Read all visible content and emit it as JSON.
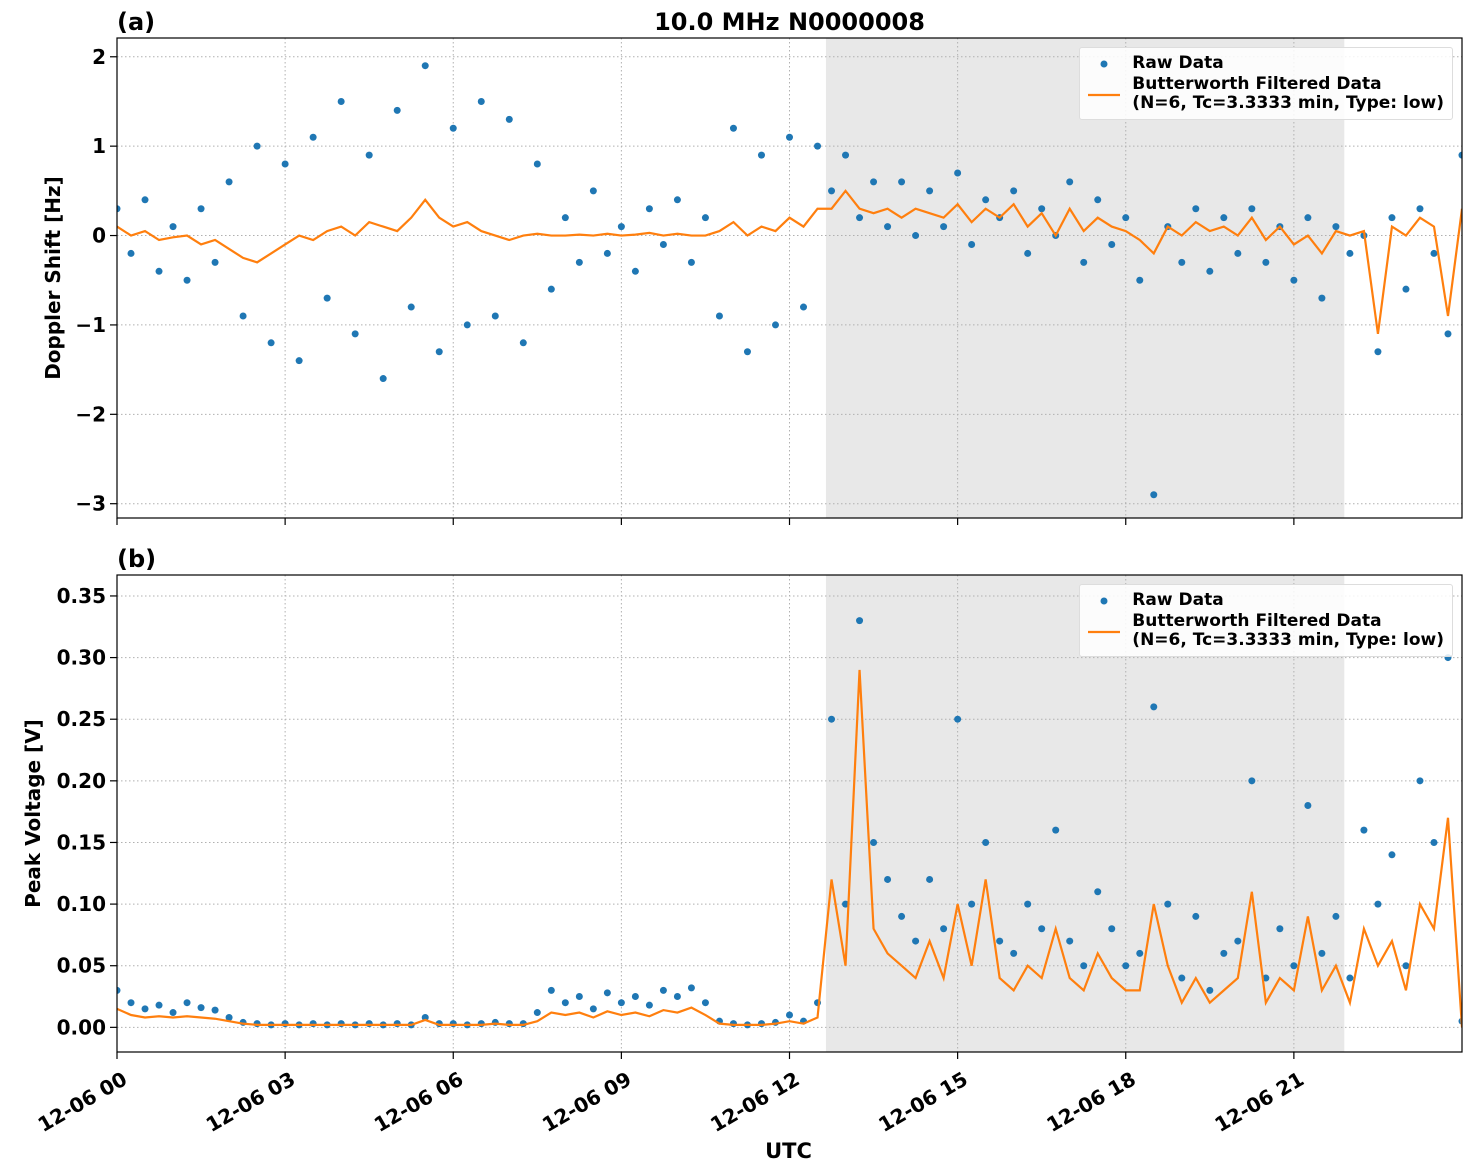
{
  "chart_data": [
    {
      "type": "line",
      "panel_label": "(a)",
      "title": "10.0 MHz N0000008",
      "ylabel": "Doppler Shift [Hz]",
      "x": [
        0,
        0.25,
        0.5,
        0.75,
        1,
        1.25,
        1.5,
        1.75,
        2,
        2.25,
        2.5,
        2.75,
        3,
        3.25,
        3.5,
        3.75,
        4,
        4.25,
        4.5,
        4.75,
        5,
        5.25,
        5.5,
        5.75,
        6,
        6.25,
        6.5,
        6.75,
        7,
        7.25,
        7.5,
        7.75,
        8,
        8.25,
        8.5,
        8.75,
        9,
        9.25,
        9.5,
        9.75,
        10,
        10.25,
        10.5,
        10.75,
        11,
        11.25,
        11.5,
        11.75,
        12,
        12.25,
        12.5,
        12.75,
        13,
        13.25,
        13.5,
        13.75,
        14,
        14.25,
        14.5,
        14.75,
        15,
        15.25,
        15.5,
        15.75,
        16,
        16.25,
        16.5,
        16.75,
        17,
        17.25,
        17.5,
        17.75,
        18,
        18.25,
        18.5,
        18.75,
        19,
        19.25,
        19.5,
        19.75,
        20,
        20.25,
        20.5,
        20.75,
        21,
        21.25,
        21.5,
        21.75,
        22,
        22.25,
        22.5,
        22.75,
        23,
        23.25,
        23.5,
        23.75,
        24
      ],
      "xlim": [
        0,
        24
      ],
      "xticks": [
        0,
        3,
        6,
        9,
        12,
        15,
        18,
        21
      ],
      "ylim": [
        -3.16,
        2.21
      ],
      "yticks": [
        {
          "value": -3,
          "label": "−3"
        },
        {
          "value": -2,
          "label": "−2"
        },
        {
          "value": -1,
          "label": "−1"
        },
        0,
        1,
        2
      ],
      "grid": true,
      "legend": "upper right",
      "shaded_span": [
        12.65,
        21.9
      ],
      "shade_color": "#e8e8e8",
      "series": [
        {
          "name": "Raw Data",
          "color": "#1f77b4",
          "mode": "markers",
          "values": [
            0.3,
            -0.2,
            0.4,
            -0.4,
            0.1,
            -0.5,
            0.3,
            -0.3,
            0.6,
            -0.9,
            1.0,
            -1.2,
            0.8,
            -1.4,
            1.1,
            -0.7,
            1.5,
            -1.1,
            0.9,
            -1.6,
            1.4,
            -0.8,
            1.9,
            -1.3,
            1.2,
            -1.0,
            1.5,
            -0.9,
            1.3,
            -1.2,
            0.8,
            -0.6,
            0.2,
            -0.3,
            0.5,
            -0.2,
            0.1,
            -0.4,
            0.3,
            -0.1,
            0.4,
            -0.3,
            0.2,
            -0.9,
            1.2,
            -1.3,
            0.9,
            -1.0,
            1.1,
            -0.8,
            1.0,
            0.5,
            0.9,
            0.2,
            0.6,
            0.1,
            0.6,
            0.0,
            0.5,
            0.1,
            0.7,
            -0.1,
            0.4,
            0.2,
            0.5,
            -0.2,
            0.3,
            0.0,
            0.6,
            -0.3,
            0.4,
            -0.1,
            0.2,
            -0.5,
            -2.9,
            0.1,
            -0.3,
            0.3,
            -0.4,
            0.2,
            -0.2,
            0.3,
            -0.3,
            0.1,
            -0.5,
            0.2,
            -0.7,
            0.1,
            -0.2,
            0.0,
            -1.3,
            0.2,
            -0.6,
            0.3,
            -0.2,
            -1.1,
            0.9
          ]
        },
        {
          "name": "Butterworth Filtered Data\n(N=6, Tc=3.3333 min, Type: low)",
          "color": "#ff7f0e",
          "mode": "line",
          "values": [
            0.1,
            0.0,
            0.05,
            -0.05,
            -0.02,
            0.0,
            -0.1,
            -0.05,
            -0.15,
            -0.25,
            -0.3,
            -0.2,
            -0.1,
            0.0,
            -0.05,
            0.05,
            0.1,
            0.0,
            0.15,
            0.1,
            0.05,
            0.2,
            0.4,
            0.2,
            0.1,
            0.15,
            0.05,
            0.0,
            -0.05,
            0.0,
            0.02,
            0.0,
            0.0,
            0.01,
            0.0,
            0.02,
            0.0,
            0.01,
            0.03,
            0.0,
            0.02,
            0.0,
            0.0,
            0.05,
            0.15,
            0.0,
            0.1,
            0.05,
            0.2,
            0.1,
            0.3,
            0.3,
            0.5,
            0.3,
            0.25,
            0.3,
            0.2,
            0.3,
            0.25,
            0.2,
            0.35,
            0.15,
            0.3,
            0.2,
            0.35,
            0.1,
            0.25,
            0.0,
            0.3,
            0.05,
            0.2,
            0.1,
            0.05,
            -0.05,
            -0.2,
            0.1,
            0.0,
            0.15,
            0.05,
            0.1,
            0.0,
            0.2,
            -0.05,
            0.1,
            -0.1,
            0.0,
            -0.2,
            0.05,
            0.0,
            0.05,
            -1.1,
            0.1,
            0.0,
            0.2,
            0.1,
            -0.9,
            0.3
          ]
        }
      ]
    },
    {
      "type": "line",
      "panel_label": "(b)",
      "ylabel": "Peak Voltage [V]",
      "xlabel": "UTC",
      "x": [
        0,
        0.25,
        0.5,
        0.75,
        1,
        1.25,
        1.5,
        1.75,
        2,
        2.25,
        2.5,
        2.75,
        3,
        3.25,
        3.5,
        3.75,
        4,
        4.25,
        4.5,
        4.75,
        5,
        5.25,
        5.5,
        5.75,
        6,
        6.25,
        6.5,
        6.75,
        7,
        7.25,
        7.5,
        7.75,
        8,
        8.25,
        8.5,
        8.75,
        9,
        9.25,
        9.5,
        9.75,
        10,
        10.25,
        10.5,
        10.75,
        11,
        11.25,
        11.5,
        11.75,
        12,
        12.25,
        12.5,
        12.75,
        13,
        13.25,
        13.5,
        13.75,
        14,
        14.25,
        14.5,
        14.75,
        15,
        15.25,
        15.5,
        15.75,
        16,
        16.25,
        16.5,
        16.75,
        17,
        17.25,
        17.5,
        17.75,
        18,
        18.25,
        18.5,
        18.75,
        19,
        19.25,
        19.5,
        19.75,
        20,
        20.25,
        20.5,
        20.75,
        21,
        21.25,
        21.5,
        21.75,
        22,
        22.25,
        22.5,
        22.75,
        23,
        23.25,
        23.5,
        23.75,
        24
      ],
      "xlim": [
        0,
        24
      ],
      "xticks": [
        {
          "value": 0,
          "label": "12-06 00"
        },
        {
          "value": 3,
          "label": "12-06 03"
        },
        {
          "value": 6,
          "label": "12-06 06"
        },
        {
          "value": 9,
          "label": "12-06 09"
        },
        {
          "value": 12,
          "label": "12-06 12"
        },
        {
          "value": 15,
          "label": "12-06 15"
        },
        {
          "value": 18,
          "label": "12-06 18"
        },
        {
          "value": 21,
          "label": "12-06 21"
        }
      ],
      "ylim": [
        -0.02,
        0.367
      ],
      "yticks": [
        {
          "value": 0,
          "label": "0.00"
        },
        {
          "value": 0.05,
          "label": "0.05"
        },
        {
          "value": 0.1,
          "label": "0.10"
        },
        {
          "value": 0.15,
          "label": "0.15"
        },
        {
          "value": 0.2,
          "label": "0.20"
        },
        {
          "value": 0.25,
          "label": "0.25"
        },
        {
          "value": 0.3,
          "label": "0.30"
        },
        {
          "value": 0.35,
          "label": "0.35"
        }
      ],
      "grid": true,
      "legend": "upper right",
      "shaded_span": [
        12.65,
        21.9
      ],
      "shade_color": "#e8e8e8",
      "series": [
        {
          "name": "Raw Data",
          "color": "#1f77b4",
          "mode": "markers",
          "values": [
            0.03,
            0.02,
            0.015,
            0.018,
            0.012,
            0.02,
            0.016,
            0.014,
            0.008,
            0.004,
            0.003,
            0.002,
            0.003,
            0.002,
            0.003,
            0.002,
            0.003,
            0.002,
            0.003,
            0.002,
            0.003,
            0.002,
            0.008,
            0.003,
            0.003,
            0.002,
            0.003,
            0.004,
            0.003,
            0.003,
            0.012,
            0.03,
            0.02,
            0.025,
            0.015,
            0.028,
            0.02,
            0.025,
            0.018,
            0.03,
            0.025,
            0.032,
            0.02,
            0.005,
            0.003,
            0.002,
            0.003,
            0.004,
            0.01,
            0.005,
            0.02,
            0.25,
            0.1,
            0.33,
            0.15,
            0.12,
            0.09,
            0.07,
            0.12,
            0.08,
            0.25,
            0.1,
            0.15,
            0.07,
            0.06,
            0.1,
            0.08,
            0.16,
            0.07,
            0.05,
            0.11,
            0.08,
            0.05,
            0.06,
            0.26,
            0.1,
            0.04,
            0.09,
            0.03,
            0.06,
            0.07,
            0.2,
            0.04,
            0.08,
            0.05,
            0.18,
            0.06,
            0.09,
            0.04,
            0.16,
            0.1,
            0.14,
            0.05,
            0.2,
            0.15,
            0.3,
            0.005
          ]
        },
        {
          "name": "Butterworth Filtered Data\n(N=6, Tc=3.3333 min, Type: low)",
          "color": "#ff7f0e",
          "mode": "line",
          "values": [
            0.015,
            0.01,
            0.008,
            0.009,
            0.008,
            0.009,
            0.008,
            0.007,
            0.005,
            0.003,
            0.002,
            0.002,
            0.002,
            0.002,
            0.002,
            0.002,
            0.002,
            0.002,
            0.002,
            0.002,
            0.002,
            0.002,
            0.006,
            0.002,
            0.002,
            0.002,
            0.002,
            0.003,
            0.002,
            0.002,
            0.005,
            0.012,
            0.01,
            0.012,
            0.008,
            0.013,
            0.01,
            0.012,
            0.009,
            0.014,
            0.012,
            0.016,
            0.01,
            0.003,
            0.002,
            0.002,
            0.002,
            0.003,
            0.005,
            0.003,
            0.008,
            0.12,
            0.05,
            0.29,
            0.08,
            0.06,
            0.05,
            0.04,
            0.07,
            0.04,
            0.1,
            0.05,
            0.12,
            0.04,
            0.03,
            0.05,
            0.04,
            0.08,
            0.04,
            0.03,
            0.06,
            0.04,
            0.03,
            0.03,
            0.1,
            0.05,
            0.02,
            0.04,
            0.02,
            0.03,
            0.04,
            0.11,
            0.02,
            0.04,
            0.03,
            0.09,
            0.03,
            0.05,
            0.02,
            0.08,
            0.05,
            0.07,
            0.03,
            0.1,
            0.08,
            0.17,
            0.0
          ]
        }
      ]
    }
  ]
}
